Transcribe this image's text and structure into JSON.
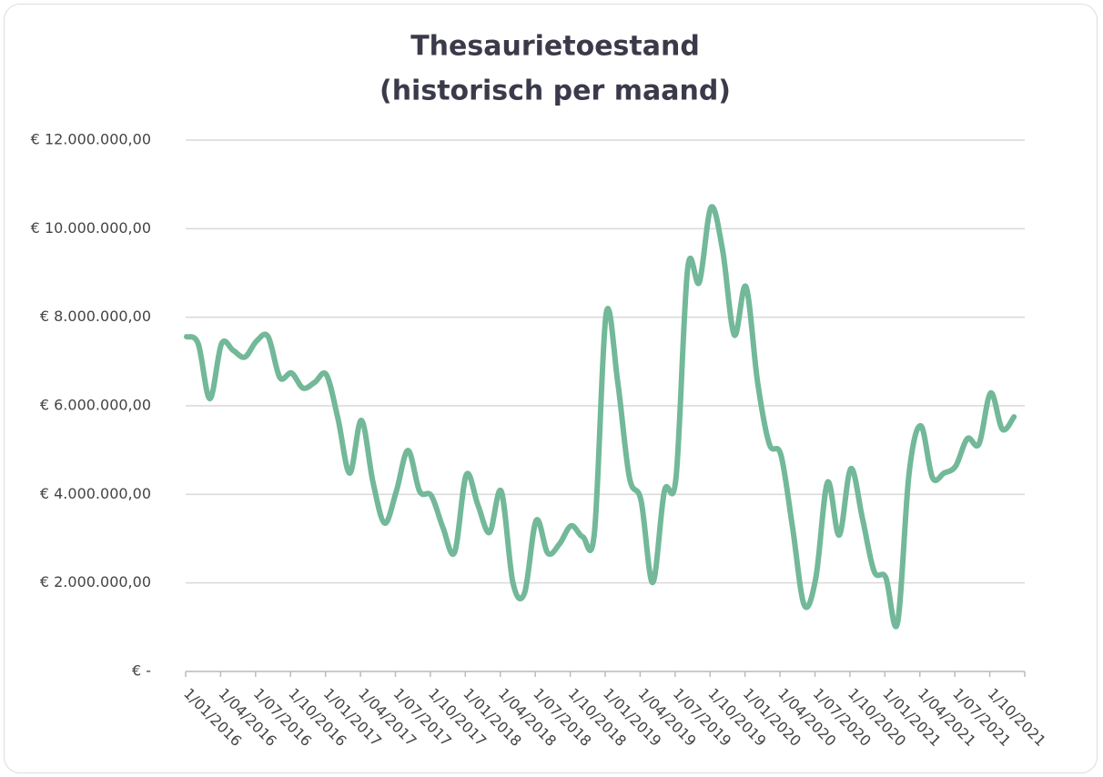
{
  "chart_data": {
    "type": "line",
    "title": "Thesaurietoestand",
    "subtitle": "(historisch per maand)",
    "categories": [
      "1/01/2016",
      null,
      null,
      "1/04/2016",
      null,
      null,
      "1/07/2016",
      null,
      null,
      "1/10/2016",
      null,
      null,
      "1/01/2017",
      null,
      null,
      "1/04/2017",
      null,
      null,
      "1/07/2017",
      null,
      null,
      "1/10/2017",
      null,
      null,
      "1/01/2018",
      null,
      null,
      "1/04/2018",
      null,
      null,
      "1/07/2018",
      null,
      null,
      "1/10/2018",
      null,
      null,
      "1/01/2019",
      null,
      null,
      "1/04/2019",
      null,
      null,
      "1/07/2019",
      null,
      null,
      "1/10/2019",
      null,
      null,
      "1/01/2020",
      null,
      null,
      "1/04/2020",
      null,
      null,
      "1/07/2020",
      null,
      null,
      "1/10/2020",
      null,
      null,
      "1/01/2021",
      null,
      null,
      "1/04/2021",
      null,
      null,
      "1/07/2021",
      null,
      null,
      "1/10/2021",
      null,
      null
    ],
    "values": [
      7560000,
      7400000,
      6160000,
      7400000,
      7250000,
      7100000,
      7460000,
      7560000,
      6640000,
      6740000,
      6400000,
      6530000,
      6700000,
      5700000,
      4480000,
      5670000,
      4270000,
      3350000,
      4070000,
      4990000,
      4070000,
      3970000,
      3250000,
      2690000,
      4440000,
      3760000,
      3140000,
      4070000,
      2010000,
      1770000,
      3410000,
      2670000,
      2880000,
      3290000,
      3040000,
      3140000,
      8070000,
      6530000,
      4380000,
      3860000,
      2010000,
      4070000,
      4380000,
      9100000,
      8790000,
      10480000,
      9510000,
      7600000,
      8690000,
      6530000,
      5140000,
      4890000,
      3250000,
      1500000,
      2120000,
      4270000,
      3080000,
      4580000,
      3450000,
      2260000,
      2120000,
      1090000,
      4480000,
      5550000,
      4380000,
      4480000,
      4640000,
      5260000,
      5140000,
      6290000,
      5470000,
      5750000
    ],
    "color": "#72b899",
    "ylim": [
      0,
      12000000
    ],
    "yticks": [
      {
        "value": 0,
        "label": "€ -"
      },
      {
        "value": 2000000,
        "label": "€ 2.000.000,00"
      },
      {
        "value": 4000000,
        "label": "€ 4.000.000,00"
      },
      {
        "value": 6000000,
        "label": "€ 6.000.000,00"
      },
      {
        "value": 8000000,
        "label": "€ 8.000.000,00"
      },
      {
        "value": 10000000,
        "label": "€ 10.000.000,00"
      },
      {
        "value": 12000000,
        "label": "€ 12.000.000,00"
      }
    ],
    "grid": true
  }
}
